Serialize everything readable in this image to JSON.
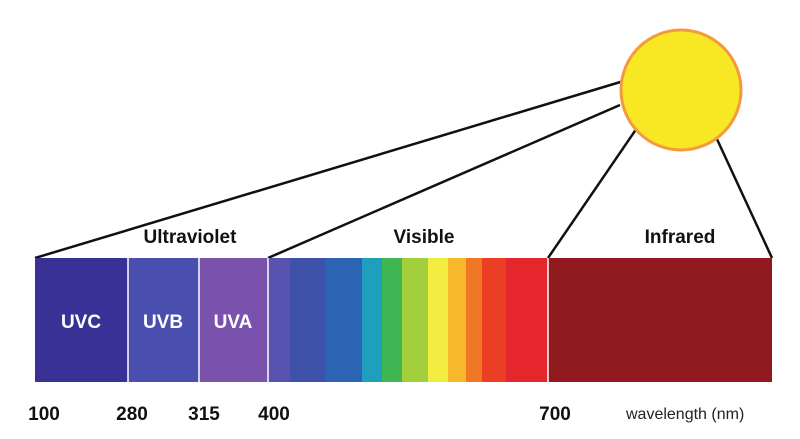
{
  "regions": {
    "ultraviolet": "Ultraviolet",
    "visible": "Visible",
    "infrared": "Infrared"
  },
  "bands": {
    "uvc": "UVC",
    "uvb": "UVB",
    "uva": "UVA"
  },
  "ticks": [
    "100",
    "280",
    "315",
    "400",
    "700"
  ],
  "unit_label": "wavelength (nm)",
  "colors": {
    "uvc": "#3a3196",
    "uvb": "#4a4eae",
    "uva": "#7a52ad",
    "infrared": "#901a1f",
    "sun_fill": "#f8e824",
    "sun_stroke": "#f29a3d",
    "visible_gradient": [
      "#5853b0",
      "#3f52aa",
      "#2d64b4",
      "#1e9fbd",
      "#3fb554",
      "#a4cf3c",
      "#f3ec40",
      "#f8b82b",
      "#f07724",
      "#ea3f25",
      "#e5262c"
    ]
  },
  "icons": {
    "sun": "sun-circle"
  }
}
